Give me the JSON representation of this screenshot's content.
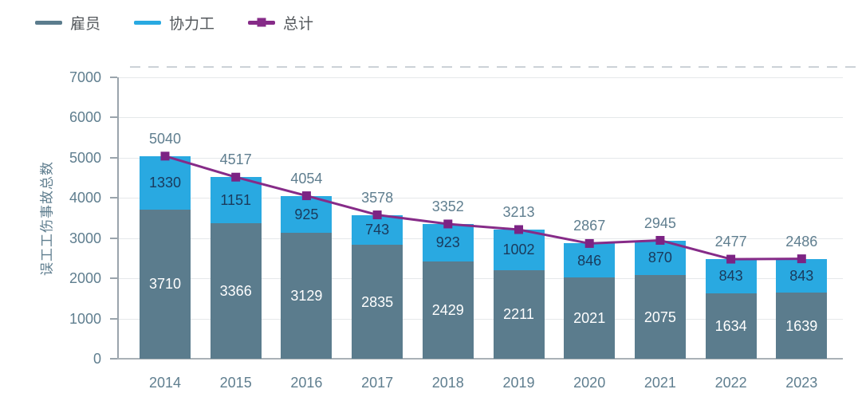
{
  "legend": {
    "items": [
      {
        "key": "employee",
        "label": "雇员",
        "color": "#5b7c8d",
        "marker": "line"
      },
      {
        "key": "contractor",
        "label": "协力工",
        "color": "#29a9e1",
        "marker": "line"
      },
      {
        "key": "total",
        "label": "总计",
        "color": "#862b88",
        "marker": "line-square"
      }
    ]
  },
  "chart_data": {
    "type": "bar",
    "subtype": "stacked-bars-with-total-line",
    "categories": [
      "2014",
      "2015",
      "2016",
      "2017",
      "2018",
      "2019",
      "2020",
      "2021",
      "2022",
      "2023"
    ],
    "series": [
      {
        "name": "雇员",
        "key": "employee",
        "render": "bar",
        "color": "#5b7c8d",
        "label_color": "#ffffff",
        "values": [
          3710,
          3366,
          3129,
          2835,
          2429,
          2211,
          2021,
          2075,
          1634,
          1639
        ]
      },
      {
        "name": "协力工",
        "key": "contractor",
        "render": "bar",
        "color": "#29a9e1",
        "label_color": "#1a3a5c",
        "values": [
          1330,
          1151,
          925,
          743,
          923,
          1002,
          846,
          870,
          843,
          843
        ]
      },
      {
        "name": "总计",
        "key": "total",
        "render": "line",
        "marker": "square",
        "color": "#862b88",
        "marker_color": "#7c2384",
        "label_color": "#5f7e8f",
        "values": [
          5040,
          4517,
          4054,
          3578,
          3352,
          3213,
          2867,
          2945,
          2477,
          2486
        ]
      }
    ],
    "xlabel": "",
    "ylabel": "误工工伤事故总数",
    "ylim": [
      0,
      7000
    ],
    "ytick_step": 1000,
    "grid": true,
    "legend_position": "top-left"
  },
  "colors": {
    "background": "#ffffff",
    "axis": "#9aa4ac",
    "gridline": "#e5e8ea",
    "tick_label": "#5f7e8f",
    "legend_text": "#54585c",
    "top_dashed_divider": "#ccd2d7"
  }
}
